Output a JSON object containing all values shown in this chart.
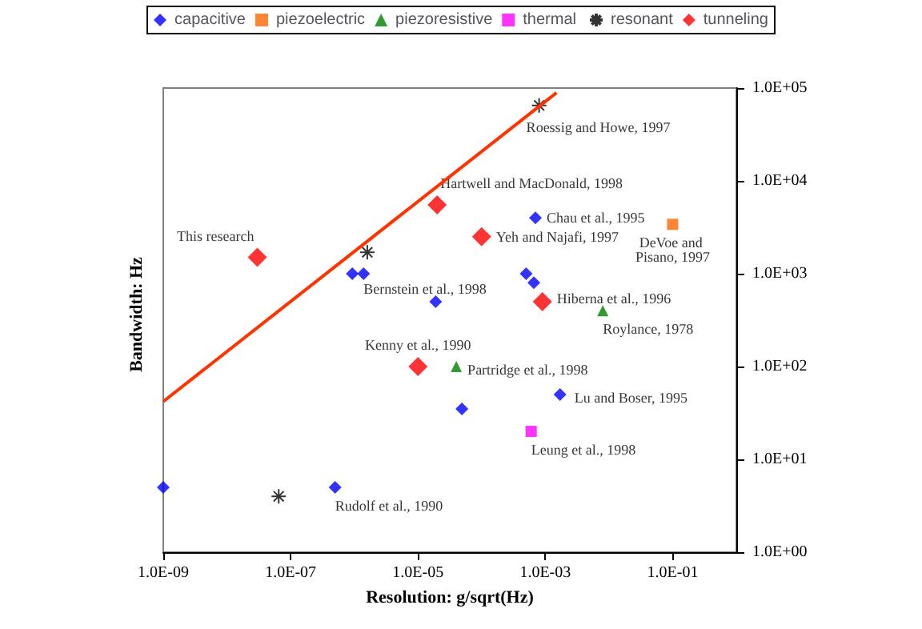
{
  "chart_data": {
    "type": "scatter",
    "xlabel": "Resolution: g/sqrt(Hz)",
    "ylabel": "Bandwidth: Hz",
    "log": "xy",
    "grid": false,
    "legend": "top",
    "xlim": [
      1e-09,
      1
    ],
    "xticks": [
      {
        "value": 1e-09,
        "label": "1.0E-09"
      },
      {
        "value": 1e-07,
        "label": "1.0E-07"
      },
      {
        "value": 1e-05,
        "label": "1.0E-05"
      },
      {
        "value": 0.001,
        "label": "1.0E-03"
      },
      {
        "value": 0.1,
        "label": "1.0E-01"
      }
    ],
    "ylim": [
      1,
      100000
    ],
    "yticks": [
      {
        "value": 1,
        "label": "1.0E+00"
      },
      {
        "value": 10,
        "label": "1.0E+01"
      },
      {
        "value": 100,
        "label": "1.0E+02"
      },
      {
        "value": 1000,
        "label": "1.0E+03"
      },
      {
        "value": 10000,
        "label": "1.0E+04"
      },
      {
        "value": 100000,
        "label": "1.0E+05"
      }
    ],
    "series": [
      {
        "name": "capacitive",
        "color": "#0000ff",
        "marker": "diamond",
        "x": [
          0.0007,
          0.0005,
          0.00066,
          9.3e-07,
          1.4e-06,
          1.9e-05,
          0.0017,
          4.9e-05,
          1e-09,
          5e-07
        ],
        "values": [
          4000,
          1000,
          800,
          1000,
          1000,
          500,
          50,
          35,
          5,
          5
        ]
      },
      {
        "name": "piezoelectric",
        "color": "#ff6600",
        "marker": "square",
        "x": [
          0.1
        ],
        "values": [
          3400
        ]
      },
      {
        "name": "piezoresistive",
        "color": "#008000",
        "marker": "triangle",
        "x": [
          4e-05,
          0.008
        ],
        "values": [
          100,
          400
        ]
      },
      {
        "name": "thermal",
        "color": "#ff00ff",
        "marker": "square",
        "x": [
          0.0006
        ],
        "values": [
          20
        ]
      },
      {
        "name": "resonant",
        "color": "#000000",
        "marker": "cross",
        "x": [
          0.0008,
          1.6e-06,
          6.5e-08
        ],
        "values": [
          65000,
          1700,
          4
        ]
      },
      {
        "name": "tunneling",
        "color": "#ff0000",
        "marker": "diamond",
        "x": [
          3e-08,
          2e-05,
          0.0001,
          0.0009,
          1e-05
        ],
        "values": [
          1500,
          5500,
          2500,
          500,
          100
        ]
      },
      {
        "type": "line",
        "color": "#ff3300",
        "marker": "none",
        "x": [
          1e-09,
          0.0015
        ],
        "values": [
          42,
          89000
        ]
      }
    ],
    "annotations": [
      {
        "text": "This research",
        "x": 3e-08,
        "y": 1500
      },
      {
        "text": "Hartwell and MacDonald, 1998",
        "x": 2e-05,
        "y": 5500
      },
      {
        "text": "Yeh and Najafi, 1997",
        "x": 0.0001,
        "y": 2500
      },
      {
        "text": "Hiberna et al., 1996",
        "x": 0.0009,
        "y": 500
      },
      {
        "text": "Kenny et al., 1990",
        "x": 1e-05,
        "y": 100
      },
      {
        "text": "Chau et al., 1995",
        "x": 0.0007,
        "y": 4000
      },
      {
        "text": "Bernstein et al., 1998",
        "x": 1.4e-06,
        "y": 1000
      },
      {
        "text": "Lu and Boser, 1995",
        "x": 0.0017,
        "y": 50
      },
      {
        "text": "Rudolf et al., 1990",
        "x": 5e-07,
        "y": 5
      },
      {
        "text": "Partridge et al., 1998",
        "x": 4e-05,
        "y": 100
      },
      {
        "text": "Roylance, 1978",
        "x": 0.008,
        "y": 400
      },
      {
        "text": "Leung et al., 1998",
        "x": 0.0006,
        "y": 20
      },
      {
        "text": "DeVoe and Pisano, 1997",
        "x": 0.1,
        "y": 3400
      },
      {
        "text": "Roessig and Howe, 1997",
        "x": 0.0008,
        "y": 65000
      }
    ]
  }
}
